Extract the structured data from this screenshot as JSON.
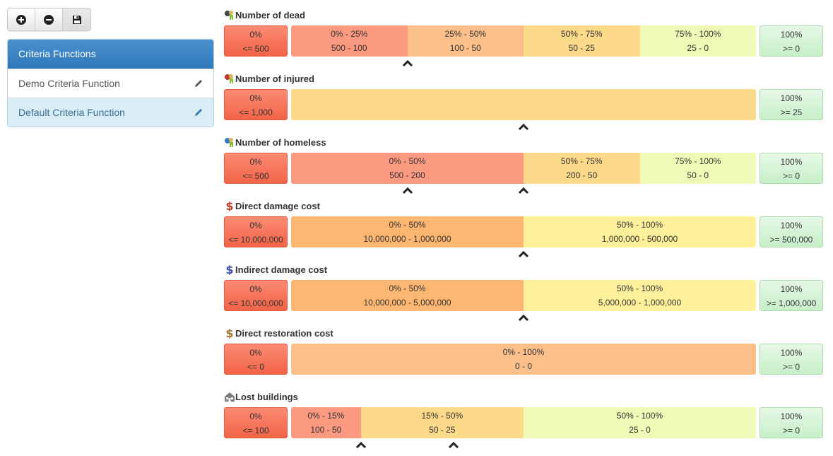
{
  "toolbar": {
    "buttons": [
      {
        "name": "add-button",
        "icon": "plus-circle-icon"
      },
      {
        "name": "remove-button",
        "icon": "minus-circle-icon"
      },
      {
        "name": "save-button",
        "icon": "floppy-disk-icon"
      }
    ]
  },
  "sidebar": {
    "title": "Criteria Functions",
    "items": [
      {
        "label": "Demo Criteria Function",
        "icon": "pencil-icon",
        "active": false
      },
      {
        "label": "Default Criteria Function",
        "icon": "pencil-icon",
        "active": true
      }
    ]
  },
  "colors": {
    "red": "#fb9a80",
    "orange_strong": "#fdb772",
    "orange": "#fdc08a",
    "amber": "#fdd98a",
    "yellow": "#fff19c",
    "lime": "#eefab6",
    "green_box": "#d4f4d5",
    "red_box": "#f47358"
  },
  "criteria": [
    {
      "title": "Number of dead",
      "icon": "dead-person-icon",
      "left": {
        "pct": "0%",
        "range": "<= 500"
      },
      "right": {
        "pct": "100%",
        "range": ">= 0"
      },
      "segments": [
        {
          "pct": "0% - 25%",
          "range": "500 - 100",
          "fraction": 0.25,
          "color": "#fb9a80"
        },
        {
          "pct": "25% - 50%",
          "range": "100 - 50",
          "fraction": 0.25,
          "color": "#fdc08a"
        },
        {
          "pct": "50% - 75%",
          "range": "50 - 25",
          "fraction": 0.25,
          "color": "#fdd98a"
        },
        {
          "pct": "75% - 100%",
          "range": "25 - 0",
          "fraction": 0.25,
          "color": "#eefab6"
        }
      ],
      "markers": [
        0.25
      ]
    },
    {
      "title": "Number of injured",
      "icon": "injured-person-icon",
      "left": {
        "pct": "0%",
        "range": "<= 1,000"
      },
      "right": {
        "pct": "100%",
        "range": ">= 25"
      },
      "segments": [
        {
          "pct": "",
          "range": "",
          "fraction": 1.0,
          "color": "#fdd98a"
        }
      ],
      "markers": [
        0.5
      ]
    },
    {
      "title": "Number of homeless",
      "icon": "homeless-person-icon",
      "left": {
        "pct": "0%",
        "range": "<= 500"
      },
      "right": {
        "pct": "100%",
        "range": ">= 0"
      },
      "segments": [
        {
          "pct": "0% - 50%",
          "range": "500 - 200",
          "fraction": 0.5,
          "color": "#fb9a80"
        },
        {
          "pct": "50% - 75%",
          "range": "200 - 50",
          "fraction": 0.25,
          "color": "#fdd98a"
        },
        {
          "pct": "75% - 100%",
          "range": "50 - 0",
          "fraction": 0.25,
          "color": "#eefab6"
        }
      ],
      "markers": [
        0.25,
        0.5
      ]
    },
    {
      "title": "Direct damage cost",
      "icon": "dollar-red-icon",
      "left": {
        "pct": "0%",
        "range": "<= 10,000,000"
      },
      "right": {
        "pct": "100%",
        "range": ">= 500,000"
      },
      "segments": [
        {
          "pct": "0% - 50%",
          "range": "10,000,000 - 1,000,000",
          "fraction": 0.5,
          "color": "#fdb772"
        },
        {
          "pct": "50% - 100%",
          "range": "1,000,000 - 500,000",
          "fraction": 0.5,
          "color": "#fff19c"
        }
      ],
      "markers": [
        0.5
      ]
    },
    {
      "title": "Indirect damage cost",
      "icon": "dollar-blue-icon",
      "left": {
        "pct": "0%",
        "range": "<= 10,000,000"
      },
      "right": {
        "pct": "100%",
        "range": ">= 1,000,000"
      },
      "segments": [
        {
          "pct": "0% - 50%",
          "range": "10,000,000 - 5,000,000",
          "fraction": 0.5,
          "color": "#fdb772"
        },
        {
          "pct": "50% - 100%",
          "range": "5,000,000 - 1,000,000",
          "fraction": 0.5,
          "color": "#fff19c"
        }
      ],
      "markers": [
        0.5
      ]
    },
    {
      "title": "Direct restoration cost",
      "icon": "dollar-brown-icon",
      "left": {
        "pct": "0%",
        "range": "<= 0"
      },
      "right": {
        "pct": "100%",
        "range": ">= 0"
      },
      "segments": [
        {
          "pct": "0% - 100%",
          "range": "0 - 0",
          "fraction": 1.0,
          "color": "#fdc08a"
        }
      ],
      "markers": []
    },
    {
      "title": "Lost buildings",
      "icon": "building-icon",
      "left": {
        "pct": "0%",
        "range": "<= 100"
      },
      "right": {
        "pct": "100%",
        "range": ">= 0"
      },
      "segments": [
        {
          "pct": "0% - 15%",
          "range": "100 - 50",
          "fraction": 0.15,
          "color": "#fb9a80"
        },
        {
          "pct": "15% - 50%",
          "range": "50 - 25",
          "fraction": 0.35,
          "color": "#fdd98a"
        },
        {
          "pct": "50% - 100%",
          "range": "25 - 0",
          "fraction": 0.5,
          "color": "#eefab6"
        }
      ],
      "markers": [
        0.15,
        0.35
      ]
    }
  ]
}
